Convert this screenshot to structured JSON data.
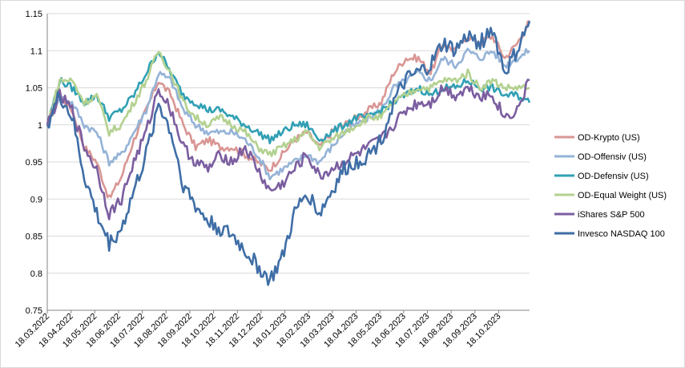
{
  "chart_data": {
    "type": "line",
    "title": "",
    "xlabel": "",
    "ylabel": "",
    "ylim": [
      0.75,
      1.15
    ],
    "yticks": [
      0.75,
      0.8,
      0.85,
      0.9,
      0.95,
      1,
      1.05,
      1.1,
      1.15
    ],
    "ytick_labels": [
      "0.75",
      "0.8",
      "0.85",
      "0.9",
      "0.95",
      "1",
      "1.05",
      "1.1",
      "1.15"
    ],
    "xtick_labels": [
      "18.03.2022",
      "18.04.2022",
      "18.05.2022",
      "18.06.2022",
      "18.07.2022",
      "18.08.2022",
      "18.09.2022",
      "18.10.2022",
      "18.11.2022",
      "18.12.2022",
      "18.01.2023",
      "18.02.2023",
      "18.03.2023",
      "18.04.2023",
      "18.05.2023",
      "18.06.2023",
      "18.07.2023",
      "18.08.2023",
      "18.09.2023",
      "18.10.2023"
    ],
    "grid": "horizontal",
    "legend_position": "right",
    "x": [
      "18.03.2022",
      "01.04.2022",
      "18.04.2022",
      "01.05.2022",
      "18.05.2022",
      "01.06.2022",
      "18.06.2022",
      "01.07.2022",
      "18.07.2022",
      "01.08.2022",
      "18.08.2022",
      "01.09.2022",
      "18.09.2022",
      "01.10.2022",
      "18.10.2022",
      "01.11.2022",
      "18.11.2022",
      "01.12.2022",
      "18.12.2022",
      "01.01.2023",
      "18.01.2023",
      "01.02.2023",
      "18.02.2023",
      "01.03.2023",
      "18.03.2023",
      "01.04.2023",
      "18.04.2023",
      "01.05.2023",
      "18.05.2023",
      "01.06.2023",
      "18.06.2023",
      "01.07.2023",
      "18.07.2023",
      "01.08.2023",
      "18.08.2023",
      "01.09.2023",
      "18.09.2023",
      "01.10.2023",
      "18.10.2023",
      "01.11.2023"
    ],
    "series": [
      {
        "name": "OD-Krypto (US)",
        "color": "#d99694",
        "values": [
          1.0,
          1.04,
          1.02,
          0.97,
          0.95,
          0.9,
          0.93,
          0.98,
          1.02,
          1.06,
          1.04,
          1.0,
          0.97,
          0.98,
          0.97,
          0.97,
          0.96,
          0.95,
          0.94,
          0.96,
          0.98,
          0.99,
          0.97,
          0.99,
          1.0,
          1.01,
          1.02,
          1.03,
          1.07,
          1.09,
          1.09,
          1.07,
          1.11,
          1.1,
          1.12,
          1.11,
          1.12,
          1.09,
          1.11,
          1.14
        ]
      },
      {
        "name": "OD-Offensiv (US)",
        "color": "#95b3d7",
        "values": [
          1.0,
          1.04,
          1.03,
          1.0,
          0.99,
          0.95,
          0.96,
          0.99,
          1.02,
          1.07,
          1.06,
          1.02,
          1.0,
          0.99,
          0.99,
          0.99,
          0.98,
          0.96,
          0.93,
          0.94,
          0.95,
          0.96,
          0.95,
          0.97,
          0.99,
          1.0,
          1.01,
          1.02,
          1.05,
          1.06,
          1.07,
          1.06,
          1.09,
          1.08,
          1.1,
          1.09,
          1.1,
          1.08,
          1.09,
          1.1
        ]
      },
      {
        "name": "OD-Defensiv (US)",
        "color": "#31a0b4",
        "values": [
          1.0,
          1.06,
          1.05,
          1.03,
          1.04,
          1.01,
          1.02,
          1.04,
          1.07,
          1.1,
          1.07,
          1.04,
          1.03,
          1.02,
          1.02,
          1.01,
          1.0,
          0.99,
          0.98,
          0.99,
          1.0,
          1.0,
          0.98,
          0.99,
          1.0,
          1.01,
          1.01,
          1.02,
          1.03,
          1.04,
          1.05,
          1.04,
          1.05,
          1.05,
          1.06,
          1.05,
          1.05,
          1.04,
          1.04,
          1.03
        ]
      },
      {
        "name": "OD-Equal Weight (US)",
        "color": "#b3d18f",
        "values": [
          1.0,
          1.06,
          1.06,
          1.03,
          1.04,
          0.99,
          1.0,
          1.03,
          1.06,
          1.1,
          1.07,
          1.03,
          1.01,
          1.0,
          1.01,
          1.0,
          0.99,
          0.97,
          0.96,
          0.97,
          0.98,
          0.99,
          0.97,
          0.98,
          0.99,
          1.0,
          1.01,
          1.01,
          1.03,
          1.04,
          1.05,
          1.05,
          1.06,
          1.06,
          1.07,
          1.05,
          1.06,
          1.05,
          1.05,
          1.05
        ]
      },
      {
        "name": "iShares S&P 500",
        "color": "#7b5ea0",
        "values": [
          1.0,
          1.04,
          1.02,
          0.97,
          0.94,
          0.88,
          0.9,
          0.95,
          0.99,
          1.05,
          1.02,
          0.97,
          0.95,
          0.94,
          0.96,
          0.95,
          0.97,
          0.94,
          0.91,
          0.92,
          0.94,
          0.96,
          0.93,
          0.94,
          0.95,
          0.96,
          0.97,
          0.98,
          1.0,
          1.02,
          1.03,
          1.03,
          1.05,
          1.04,
          1.05,
          1.04,
          1.04,
          1.01,
          1.02,
          1.06
        ]
      },
      {
        "name": "Invesco NASDAQ 100",
        "color": "#3f6ea6",
        "values": [
          1.0,
          1.04,
          1.01,
          0.93,
          0.88,
          0.84,
          0.86,
          0.91,
          0.96,
          1.03,
          0.99,
          0.92,
          0.89,
          0.87,
          0.86,
          0.85,
          0.83,
          0.81,
          0.79,
          0.82,
          0.88,
          0.91,
          0.88,
          0.91,
          0.94,
          0.95,
          0.96,
          0.98,
          1.03,
          1.06,
          1.07,
          1.08,
          1.11,
          1.1,
          1.12,
          1.11,
          1.13,
          1.07,
          1.1,
          1.14
        ]
      }
    ]
  }
}
